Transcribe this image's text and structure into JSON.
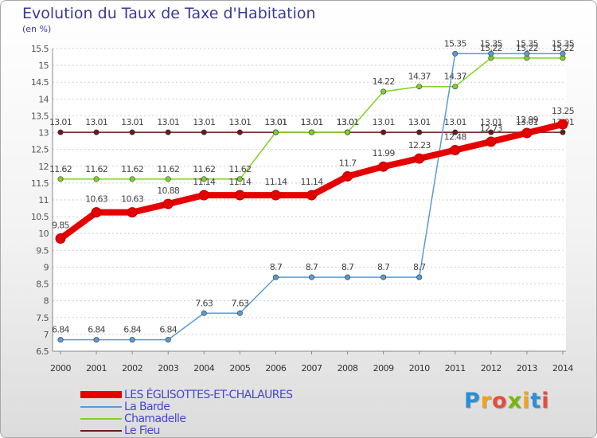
{
  "header": {
    "title": "Evolution du Taux de Taxe d'Habitation",
    "subtitle": "(en %)"
  },
  "chart_data": {
    "type": "line",
    "title": "Evolution du Taux de Taxe d'Habitation",
    "ylabel": "(en %)",
    "x": [
      "2000",
      "2001",
      "2002",
      "2003",
      "2004",
      "2005",
      "2006",
      "2007",
      "2008",
      "2009",
      "2010",
      "2011",
      "2012",
      "2013",
      "2014"
    ],
    "ylim": [
      6.5,
      15.5
    ],
    "yticks": [
      "6.5",
      "7",
      "7.5",
      "8",
      "8.5",
      "9",
      "9.5",
      "10",
      "10.5",
      "11",
      "11.5",
      "12",
      "12.5",
      "13",
      "13.5",
      "14",
      "14.5",
      "15",
      "15.5"
    ],
    "grid": true,
    "series": [
      {
        "name": "Le Fieu",
        "color": "#6b1a1a",
        "values": [
          13.01,
          13.01,
          13.01,
          13.01,
          13.01,
          13.01,
          13.01,
          13.01,
          13.01,
          13.01,
          13.01,
          13.01,
          13.01,
          13.01,
          13.01
        ],
        "labels": [
          "13.01",
          "13.01",
          "13.01",
          "13.01",
          "13.01",
          "13.01",
          "13.01",
          "13.01",
          "13.01",
          "13.01",
          "13.01",
          "13.01",
          "13.01",
          "13.01",
          "13.01"
        ]
      },
      {
        "name": "Chamadelle",
        "color": "#7ed321",
        "values": [
          11.62,
          11.62,
          11.62,
          11.62,
          11.62,
          11.62,
          13.01,
          13.01,
          13.01,
          14.22,
          14.37,
          14.37,
          15.22,
          15.22,
          15.22
        ],
        "labels": [
          "11.62",
          "11.62",
          "11.62",
          "11.62",
          "11.62",
          "11.62",
          "13.01",
          "13.01",
          "13.01",
          "14.22",
          "14.37",
          "14.37",
          "15.22",
          "15.22",
          "15.22"
        ]
      },
      {
        "name": "La Barde",
        "color": "#5b9bd5",
        "values": [
          6.84,
          6.84,
          6.84,
          6.84,
          7.63,
          7.63,
          8.7,
          8.7,
          8.7,
          8.7,
          8.7,
          15.35,
          15.35,
          15.35,
          15.35
        ],
        "labels": [
          "6.84",
          "6.84",
          "6.84",
          "6.84",
          "7.63",
          "7.63",
          "8.7",
          "8.7",
          "8.7",
          "8.7",
          "8.7",
          "15.35",
          "15.35",
          "15.35",
          "15.35"
        ]
      },
      {
        "name": "LES ÉGLISOTTES-ET-CHALAURES",
        "color": "#e60000",
        "values": [
          9.85,
          10.63,
          10.63,
          10.88,
          11.14,
          11.14,
          11.14,
          11.14,
          11.7,
          11.99,
          12.23,
          12.48,
          12.73,
          12.99,
          13.25
        ],
        "labels": [
          "9.85",
          "10.63",
          "10.63",
          "10.88",
          "11.14",
          "11.14",
          "11.14",
          "11.14",
          "11.7",
          "11.99",
          "12.23",
          "12.48",
          "12.73",
          "12.99",
          "13.25"
        ]
      }
    ]
  },
  "legend": [
    {
      "label": "LES ÉGLISOTTES-ET-CHALAURES",
      "color": "#e60000"
    },
    {
      "label": "La Barde",
      "color": "#5b9bd5"
    },
    {
      "label": "Chamadelle",
      "color": "#7ed321"
    },
    {
      "label": "Le Fieu",
      "color": "#6b1a1a"
    }
  ],
  "logo": {
    "letters": [
      "P",
      "r",
      "o",
      "x",
      "i",
      "t",
      "i"
    ],
    "colors": [
      "#2a8fd6",
      "#f2a21b",
      "#e74c3c",
      "#7ab800",
      "#f2a21b",
      "#2a8fd6",
      "#e74c3c"
    ]
  }
}
